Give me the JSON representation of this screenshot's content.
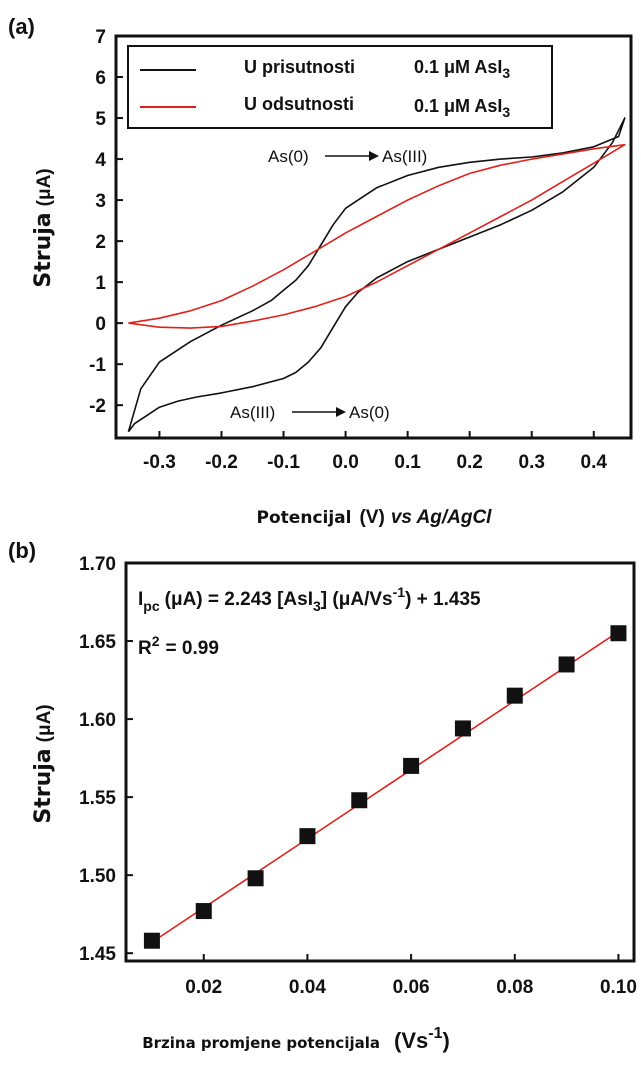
{
  "chart_data": [
    {
      "panel": "(a)",
      "type": "line",
      "xlabel_main": "Potencijal",
      "xlabel_units": "(V)",
      "xlabel_ref": "vs Ag/AgCl",
      "ylabel": "Struja",
      "ylabel_units": "(μA)",
      "xlim": [
        -0.37,
        0.46
      ],
      "ylim": [
        -2.8,
        7
      ],
      "xticks": [
        -0.3,
        -0.2,
        -0.1,
        0.0,
        0.1,
        0.2,
        0.3,
        0.4
      ],
      "xtick_labels": [
        "-0.3",
        "-0.2",
        "-0.1",
        "0.0",
        "0.1",
        "0.2",
        "0.3",
        "0.4"
      ],
      "yticks": [
        -2,
        -1,
        0,
        1,
        2,
        3,
        4,
        5,
        6,
        7
      ],
      "ytick_labels": [
        "-2",
        "-1",
        "0",
        "1",
        "2",
        "3",
        "4",
        "5",
        "6",
        "7"
      ],
      "legend_position": "top",
      "series": [
        {
          "name": "U prisutnosti",
          "legend_suffix": "0.1 μM AsI",
          "legend_sub": "3",
          "color": "#111111",
          "x": [
            -0.35,
            -0.34,
            -0.32,
            -0.3,
            -0.27,
            -0.24,
            -0.2,
            -0.15,
            -0.1,
            -0.08,
            -0.06,
            -0.04,
            -0.02,
            0.0,
            0.02,
            0.05,
            0.1,
            0.15,
            0.2,
            0.25,
            0.3,
            0.35,
            0.4,
            0.43,
            0.45,
            0.44,
            0.4,
            0.35,
            0.3,
            0.25,
            0.2,
            0.15,
            0.1,
            0.05,
            0.02,
            0.0,
            -0.02,
            -0.04,
            -0.06,
            -0.08,
            -0.1,
            -0.12,
            -0.15,
            -0.2,
            -0.25,
            -0.3,
            -0.33,
            -0.35
          ],
          "y": [
            -2.65,
            -2.45,
            -2.25,
            -2.05,
            -1.9,
            -1.8,
            -1.7,
            -1.55,
            -1.35,
            -1.2,
            -0.95,
            -0.6,
            -0.1,
            0.4,
            0.75,
            1.1,
            1.5,
            1.8,
            2.1,
            2.4,
            2.75,
            3.2,
            3.8,
            4.4,
            5.0,
            4.55,
            4.3,
            4.15,
            4.05,
            4.0,
            3.92,
            3.8,
            3.6,
            3.3,
            3.0,
            2.8,
            2.4,
            1.9,
            1.4,
            1.05,
            0.8,
            0.55,
            0.3,
            -0.05,
            -0.45,
            -0.95,
            -1.6,
            -2.65
          ]
        },
        {
          "name": "U odsutnosti",
          "legend_suffix": "0.1 μM AsI",
          "legend_sub": "3",
          "color": "#e0211b",
          "x": [
            -0.35,
            -0.3,
            -0.25,
            -0.2,
            -0.15,
            -0.1,
            -0.05,
            0.0,
            0.05,
            0.1,
            0.15,
            0.2,
            0.25,
            0.3,
            0.35,
            0.4,
            0.45,
            0.4,
            0.35,
            0.3,
            0.25,
            0.2,
            0.15,
            0.1,
            0.05,
            0.0,
            -0.05,
            -0.1,
            -0.15,
            -0.2,
            -0.25,
            -0.3,
            -0.35
          ],
          "y": [
            0.0,
            -0.1,
            -0.12,
            -0.08,
            0.05,
            0.2,
            0.4,
            0.65,
            1.0,
            1.4,
            1.8,
            2.2,
            2.6,
            3.0,
            3.45,
            3.9,
            4.35,
            4.25,
            4.12,
            4.0,
            3.85,
            3.65,
            3.35,
            3.0,
            2.6,
            2.2,
            1.75,
            1.3,
            0.9,
            0.55,
            0.3,
            0.12,
            0.0
          ]
        }
      ],
      "annotations": [
        {
          "from": "As(0)",
          "to": "As(III)",
          "x": 0.0,
          "y": 4.1
        },
        {
          "from": "As(III)",
          "to": "As(0)",
          "x": -0.02,
          "y": -2.1
        }
      ]
    },
    {
      "panel": "(b)",
      "type": "scatter",
      "xlabel_main": "Brzina promjene potencijala",
      "xlabel_units": "(Vs",
      "xlabel_units_sup": "-1",
      "xlabel_units_close": ")",
      "ylabel": "Struja",
      "ylabel_units": "(μA)",
      "xlim": [
        0.005,
        0.103
      ],
      "ylim": [
        1.445,
        1.7
      ],
      "xticks": [
        0.02,
        0.04,
        0.06,
        0.08,
        0.1
      ],
      "xtick_labels": [
        "0.02",
        "0.04",
        "0.06",
        "0.08",
        "0.10"
      ],
      "yticks": [
        1.45,
        1.5,
        1.55,
        1.6,
        1.65,
        1.7
      ],
      "ytick_labels": [
        "1.45",
        "1.50",
        "1.55",
        "1.60",
        "1.65",
        "1.70"
      ],
      "series": [
        {
          "name": "",
          "marker": "square",
          "color": "#111111",
          "x": [
            0.01,
            0.02,
            0.03,
            0.04,
            0.05,
            0.06,
            0.07,
            0.08,
            0.09,
            0.1
          ],
          "y": [
            1.458,
            1.477,
            1.498,
            1.525,
            1.548,
            1.57,
            1.594,
            1.615,
            1.635,
            1.655
          ]
        }
      ],
      "fit": {
        "color": "#e0211b",
        "x": [
          0.01,
          0.1
        ],
        "y": [
          1.457,
          1.656
        ]
      },
      "equation": {
        "lhs_main": "I",
        "lhs_sub": "pc",
        "lhs_units": "(μA) = 2.243 [AsI",
        "mid_sub": "3",
        "rhs": "] (μA/Vs",
        "rhs_sup": "-1",
        "tail": ") + 1.435"
      },
      "r2": {
        "label": "R",
        "sup": "2",
        "value": "= 0.99"
      }
    }
  ]
}
